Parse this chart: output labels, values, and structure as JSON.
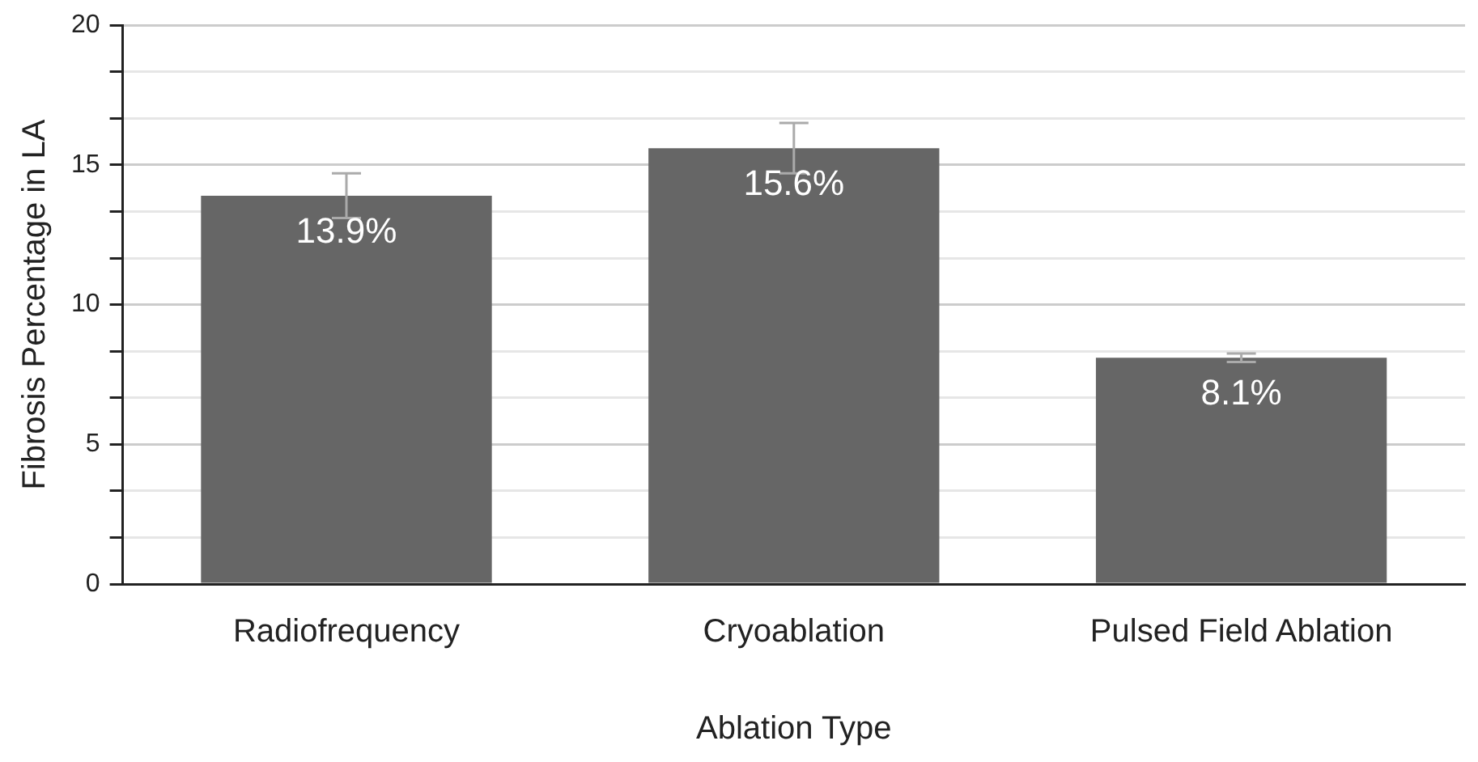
{
  "chart_data": {
    "type": "bar",
    "xlabel": "Ablation Type",
    "ylabel": "Fibrosis Percentage in LA",
    "categories": [
      "Radiofrequency",
      "Cryoablation",
      "Pulsed Field Ablation"
    ],
    "values": [
      13.9,
      15.6,
      8.1
    ],
    "color": "#666666",
    "errors": [
      0.8,
      0.9,
      0.15
    ],
    "value_labels": [
      "13.9%",
      "15.6%",
      "8.1%"
    ],
    "ylim": [
      0,
      20
    ],
    "yticks": [
      0,
      {
        "value": 1.667,
        "label": null
      },
      {
        "value": 3.333,
        "label": null
      },
      5,
      {
        "value": 6.667,
        "label": null
      },
      {
        "value": 8.333,
        "label": null
      },
      10,
      {
        "value": 11.667,
        "label": null
      },
      {
        "value": 13.333,
        "label": null
      },
      15,
      {
        "value": 16.667,
        "label": null
      },
      {
        "value": 18.333,
        "label": null
      },
      20
    ],
    "grid": "y",
    "legend": false
  }
}
